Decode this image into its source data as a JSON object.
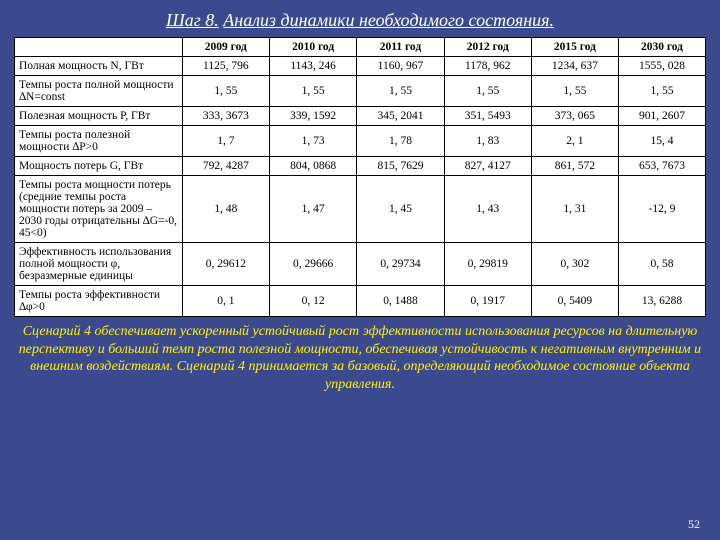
{
  "title": {
    "step": "Шаг 8.",
    "rest": "Анализ динамики необходимого состояния."
  },
  "table": {
    "columns": [
      "",
      "2009 год",
      "2010 год",
      "2011 год",
      "2012 год",
      "2015 год",
      "2030 год"
    ],
    "rows": [
      {
        "label": "Полная мощность N, ГВт",
        "vals": [
          "1125, 796",
          "1143, 246",
          "1160, 967",
          "1178, 962",
          "1234, 637",
          "1555, 028"
        ]
      },
      {
        "label": "Темпы роста полной мощности ∆N=const",
        "vals": [
          "1, 55",
          "1, 55",
          "1, 55",
          "1, 55",
          "1, 55",
          "1, 55"
        ]
      },
      {
        "label": "Полезная мощность P, ГВт",
        "vals": [
          "333, 3673",
          "339, 1592",
          "345, 2041",
          "351, 5493",
          "373, 065",
          "901, 2607"
        ]
      },
      {
        "label": "Темпы роста полезной мощности ∆P>0",
        "vals": [
          "1, 7",
          "1, 73",
          "1, 78",
          "1, 83",
          "2, 1",
          "15, 4"
        ]
      },
      {
        "label": "Мощность потерь G, ГВт",
        "vals": [
          "792, 4287",
          "804, 0868",
          "815, 7629",
          "827, 4127",
          "861, 572",
          "653, 7673"
        ]
      },
      {
        "label": "Темпы роста мощности потерь (средние темпы роста мощности потерь за 2009 – 2030 годы отрицательны ∆G=-0, 45<0)",
        "vals": [
          "1, 48",
          "1, 47",
          "1, 45",
          "1, 43",
          "1, 31",
          "-12, 9"
        ]
      },
      {
        "label": "Эффективность использования полной мощности φ, безразмерные единицы",
        "vals": [
          "0, 29612",
          "0, 29666",
          "0, 29734",
          "0, 29819",
          "0, 302",
          "0, 58"
        ]
      },
      {
        "label": "Темпы роста эффективности ∆φ>0",
        "vals": [
          "0, 1",
          "0, 12",
          "0, 1488",
          "0, 1917",
          "0, 5409",
          "13, 6288"
        ]
      }
    ]
  },
  "footnote": "Сценарий 4 обеспечивает ускоренный устойчивый рост эффективности использования ресурсов на длительную перспективу и больший темп роста полезной мощности, обеспечивая устойчивость к негативным внутренним и внешним воздействиям. Сценарий 4 принимается за базовый, определяющий необходимое состояние объекта управления.",
  "pagenum": "52"
}
